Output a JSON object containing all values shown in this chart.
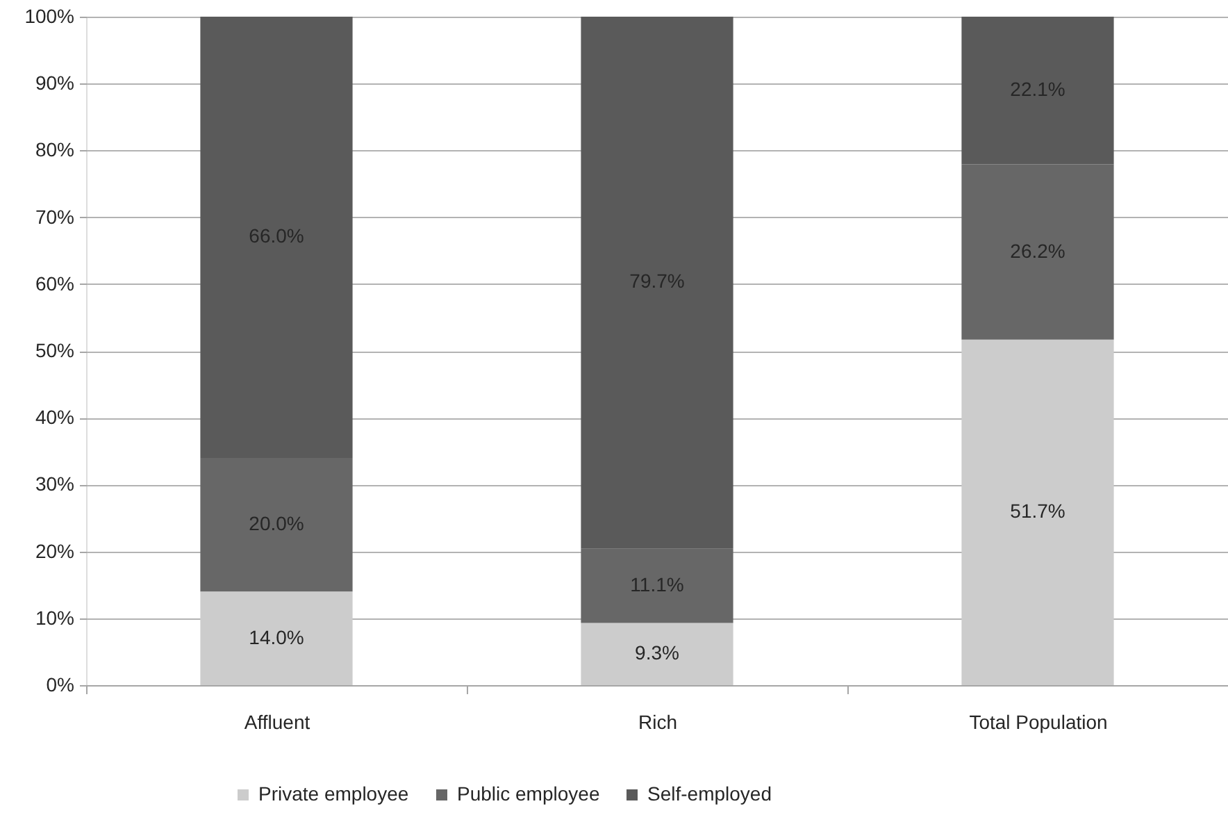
{
  "chart_data": {
    "type": "bar",
    "stacked": true,
    "categories": [
      "Affluent",
      "Rich",
      "Total Population"
    ],
    "series": [
      {
        "name": "Private employee",
        "color": "#cccccc",
        "values": [
          14.0,
          9.3,
          51.7
        ],
        "value_labels": [
          "14.0%",
          "9.3%",
          "51.7%"
        ]
      },
      {
        "name": "Public employee",
        "color": "#676767",
        "values": [
          20.0,
          11.1,
          26.2
        ],
        "value_labels": [
          "20.0%",
          "11.1%",
          "26.2%"
        ]
      },
      {
        "name": "Self-employed",
        "color": "#5a5a5a",
        "values": [
          66.0,
          79.7,
          22.1
        ],
        "value_labels": [
          "66.0%",
          "79.7%",
          "22.1%"
        ]
      }
    ],
    "ylim": [
      0,
      100
    ],
    "yticks": [
      {
        "value": 0,
        "label": "0%"
      },
      {
        "value": 10,
        "label": "10%"
      },
      {
        "value": 20,
        "label": "20%"
      },
      {
        "value": 30,
        "label": "30%"
      },
      {
        "value": 40,
        "label": "40%"
      },
      {
        "value": 50,
        "label": "50%"
      },
      {
        "value": 60,
        "label": "60%"
      },
      {
        "value": 70,
        "label": "70%"
      },
      {
        "value": 80,
        "label": "80%"
      },
      {
        "value": 90,
        "label": "90%"
      },
      {
        "value": 100,
        "label": "100%"
      }
    ],
    "grid": "y",
    "legend": "bottom"
  }
}
